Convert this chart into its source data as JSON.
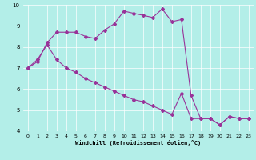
{
  "xlabel": "Windchill (Refroidissement éolien,°C)",
  "bg_color": "#b3eee8",
  "line_color": "#993399",
  "marker": "D",
  "markersize": 2,
  "linewidth": 0.8,
  "xlim": [
    -0.5,
    23.5
  ],
  "ylim": [
    4,
    10
  ],
  "xticks": [
    0,
    1,
    2,
    3,
    4,
    5,
    6,
    7,
    8,
    9,
    10,
    11,
    12,
    13,
    14,
    15,
    16,
    17,
    18,
    19,
    20,
    21,
    22,
    23
  ],
  "yticks": [
    4,
    5,
    6,
    7,
    8,
    9,
    10
  ],
  "series": [
    {
      "x": [
        0,
        1,
        2,
        3,
        4,
        5,
        6,
        7,
        8,
        9,
        10,
        11,
        12,
        13,
        14,
        15,
        16,
        17,
        18,
        19,
        20,
        21,
        22,
        23
      ],
      "y": [
        7.0,
        7.3,
        8.2,
        8.7,
        8.7,
        8.7,
        8.5,
        8.4,
        8.8,
        9.1,
        9.7,
        9.6,
        9.5,
        9.4,
        9.8,
        9.2,
        9.3,
        5.7,
        4.6,
        4.6,
        4.3,
        4.7,
        4.6,
        4.6
      ]
    },
    {
      "x": [
        0,
        1,
        2,
        3,
        4,
        5,
        6,
        7,
        8,
        9,
        10,
        11,
        12,
        13,
        14,
        15,
        16,
        17,
        18,
        19,
        20,
        21,
        22,
        23
      ],
      "y": [
        7.0,
        7.4,
        8.1,
        7.4,
        7.0,
        6.8,
        6.5,
        6.3,
        6.1,
        5.9,
        5.7,
        5.5,
        5.4,
        5.2,
        5.0,
        4.8,
        5.8,
        4.6,
        4.6,
        4.6,
        4.3,
        4.7,
        4.6,
        4.6
      ]
    }
  ]
}
